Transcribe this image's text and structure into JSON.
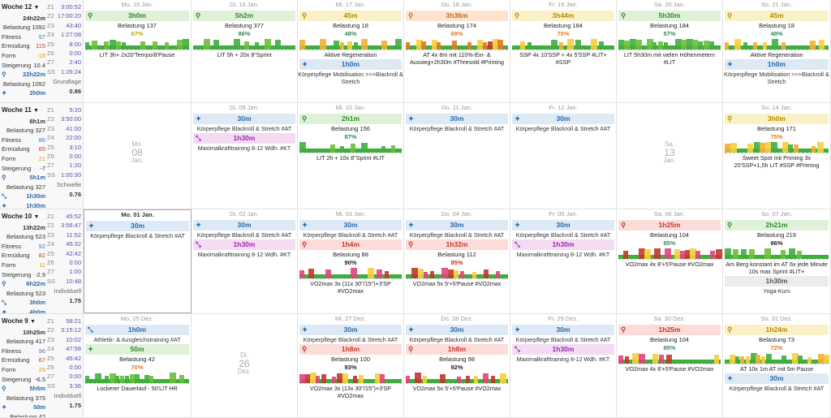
{
  "weeks": [
    {
      "name": "Woche 12",
      "time": "24h22m",
      "load": "Belastung 1092",
      "fitness": "97",
      "fatigue": "115",
      "form": "-18",
      "increase": "10.4",
      "bike_time": "22h22m",
      "bike_load": "Belastung 1092",
      "walk_time": "2h0m",
      "zones": [
        [
          "Z1",
          "3:00:52"
        ],
        [
          "Z2",
          "17:00:20"
        ],
        [
          "Z3",
          "43:40"
        ],
        [
          "Z4",
          "1:27:08"
        ],
        [
          "Z5",
          "8:00"
        ],
        [
          "Z6",
          "0:00"
        ],
        [
          "Z7",
          "2:40"
        ],
        [
          "SS",
          "1:26:24"
        ]
      ],
      "plan_label": "Grundlage",
      "plan_value": "0.86",
      "days": [
        {
          "date": "Mo. 15 Jan.",
          "events": [
            {
              "color": "green",
              "icon": "bike-icon",
              "dur": "3h0m",
              "load": "Belastung 137",
              "pct": "67%",
              "pctc": "y",
              "desc": "LIT 3h+ 2x20'Tempo/8'Pause"
            }
          ]
        },
        {
          "date": "Di. 16 Jan.",
          "events": [
            {
              "color": "green",
              "icon": "bike-icon",
              "dur": "5h2m",
              "load": "Belastung 377",
              "pct": "86%",
              "pctc": "g",
              "desc": "LIT 5h + 20x 8\"Sprint"
            }
          ]
        },
        {
          "date": "Mi. 17 Jan.",
          "events": [
            {
              "color": "yel",
              "icon": "bike-icon",
              "dur": "45m",
              "load": "Belastung 18",
              "pct": "48%",
              "pctc": "g",
              "desc": "Aktive Regeneration"
            },
            {
              "color": "blue",
              "icon": "walk-icon",
              "dur": "1h0m",
              "sub": "Körperpflege Mobilisation >>>Blackroll & Stretch"
            }
          ]
        },
        {
          "date": "Do. 18 Jan.",
          "events": [
            {
              "color": "ora",
              "icon": "bike-icon",
              "dur": "3h36m",
              "load": "Belastung 174",
              "pct": "69%",
              "pctc": "o",
              "desc": "AT 4x 8m mit 110%-Ein- & Aussieg+2h30m #Thresold #Priming"
            }
          ]
        },
        {
          "date": "Fr. 19 Jan.",
          "events": [
            {
              "color": "yel",
              "icon": "bike-icon",
              "dur": "3h44m",
              "load": "Belastung 184",
              "pct": "70%",
              "pctc": "o",
              "desc": "SSP 4x 10'SSP + 4x 5'SSP #LIT+ #SSP"
            }
          ]
        },
        {
          "date": "Sa. 20 Jan.",
          "events": [
            {
              "color": "green",
              "icon": "bike-icon",
              "dur": "5h30m",
              "load": "Belastung 184",
              "pct": "57%",
              "pctc": "g",
              "desc": "LIT 5h30m mit vielen Höhenmetern #LIT"
            }
          ]
        },
        {
          "date": "So. 21 Jan.",
          "events": [
            {
              "color": "yel",
              "icon": "bike-icon",
              "dur": "45m",
              "load": "Belastung 18",
              "pct": "48%",
              "pctc": "g",
              "desc": "Aktive Regeneration"
            },
            {
              "color": "blue",
              "icon": "walk-icon",
              "dur": "1h0m",
              "sub": "Körperpflege Mobilisation >>>Blackroll & Stretch"
            }
          ]
        }
      ]
    },
    {
      "name": "Woche 11",
      "time": "8h1m",
      "load": "Belastung 327",
      "fitness": "86",
      "fatigue": "65",
      "form": "21",
      "increase": "-7",
      "bike_time": "5h1m",
      "bike_load": "Belastung 327",
      "strength_time": "1h30m",
      "walk_time": "1h30m",
      "zones": [
        [
          "Z1",
          "5:20"
        ],
        [
          "Z2",
          "3:50:00"
        ],
        [
          "Z3",
          "41:00"
        ],
        [
          "Z4",
          "22:00"
        ],
        [
          "Z5",
          "3:10"
        ],
        [
          "Z6",
          "0:00"
        ],
        [
          "Z7",
          "1:20"
        ],
        [
          "SS",
          "1:00:30"
        ]
      ],
      "plan_label": "Schwelle",
      "plan_value": "0.76",
      "days": [
        {
          "date": "Mo.",
          "empty_num": "08",
          "empty_mon": "Jan.",
          "events": []
        },
        {
          "date": "Di. 09 Jan.",
          "events": [
            {
              "color": "blue",
              "icon": "walk-icon",
              "dur": "30m",
              "sub": "Körperpflege Blackroll & Stretch #AT"
            },
            {
              "color": "pink",
              "icon": "strength-icon",
              "dur": "1h30m",
              "sub": "Maximalkrafttraining 8-12 Wdh. #KT"
            }
          ]
        },
        {
          "date": "Mi. 10 Jan.",
          "events": [
            {
              "color": "green",
              "icon": "bike-icon",
              "dur": "2h1m",
              "load": "Belastung 156",
              "pct": "87%",
              "pctc": "g",
              "desc": "LIT 2h + 10x 8\"Sprint #LIT"
            }
          ]
        },
        {
          "date": "Do. 11 Jan.",
          "events": [
            {
              "color": "blue",
              "icon": "walk-icon",
              "dur": "30m",
              "sub": "Körperpflege Blackroll & Stretch #AT"
            }
          ]
        },
        {
          "date": "Fr. 12 Jan.",
          "events": [
            {
              "color": "blue",
              "icon": "walk-icon",
              "dur": "30m",
              "sub": "Körperpflege Blackroll & Stretch #AT"
            }
          ]
        },
        {
          "date": "Sa.",
          "empty_num": "13",
          "empty_mon": "Jan.",
          "events": []
        },
        {
          "date": "So. 14 Jan.",
          "events": [
            {
              "color": "yel",
              "icon": "bike-icon",
              "dur": "3h0m",
              "load": "Belastung 171",
              "pct": "75%",
              "pctc": "o",
              "desc": "Sweet Spot mit Priming 3x 20'SSP+1,5h LIT #SSP #Priming"
            }
          ]
        }
      ]
    },
    {
      "name": "Woche 10",
      "time": "13h22m",
      "load": "Belastung 523",
      "fitness": "92",
      "fatigue": "82",
      "form": "11",
      "increase": "-2.9",
      "bike_time": "6h22m",
      "bike_load": "Belastung 523",
      "strength_time": "3h0m",
      "walk_time": "4h0m",
      "zones": [
        [
          "Z1",
          "45:52"
        ],
        [
          "Z2",
          "3:56:47"
        ],
        [
          "Z3",
          "11:52"
        ],
        [
          "Z4",
          "45:32"
        ],
        [
          "Z5",
          "42:42"
        ],
        [
          "Z6",
          "0:00"
        ],
        [
          "Z7",
          "1:00"
        ],
        [
          "SS",
          "10:48"
        ]
      ],
      "plan_label": "Individuell",
      "plan_value": "1.75",
      "days": [
        {
          "date": "Mo. 01 Jan.",
          "current": true,
          "events": [
            {
              "color": "blue",
              "icon": "walk-icon",
              "dur": "30m",
              "sub": "Körperpflege Blackroll & Stretch #AT"
            }
          ]
        },
        {
          "date": "Di. 02 Jan.",
          "events": [
            {
              "color": "blue",
              "icon": "walk-icon",
              "dur": "30m",
              "sub": "Körperpflege Blackroll & Stretch #AT"
            },
            {
              "color": "pink",
              "icon": "strength-icon",
              "dur": "1h30m",
              "sub": "Maximalkrafttraining 8-12 Wdh. #KT"
            }
          ]
        },
        {
          "date": "Mi. 03 Jan.",
          "events": [
            {
              "color": "blue",
              "icon": "walk-icon",
              "dur": "30m",
              "sub": "Körperpflege Blackroll & Stretch #AT"
            },
            {
              "color": "red",
              "icon": "bike-icon",
              "dur": "1h4m",
              "load": "Belastung 88",
              "pct": "90%",
              "pctc": "k",
              "desc": "VO2max 3x (11x 30\"/15\")+3'SP #VO2max"
            }
          ]
        },
        {
          "date": "Do. 04 Jan.",
          "events": [
            {
              "color": "blue",
              "icon": "walk-icon",
              "dur": "30m",
              "sub": "Körperpflege Blackroll & Stretch #AT"
            },
            {
              "color": "red",
              "icon": "bike-icon",
              "dur": "1h32m",
              "load": "Belastung 112",
              "pct": "85%",
              "pctc": "r",
              "desc": "VO2max 5x 5'+5'Pause #VO2max"
            }
          ]
        },
        {
          "date": "Fr. 05 Jan.",
          "events": [
            {
              "color": "blue",
              "icon": "walk-icon",
              "dur": "30m",
              "sub": "Körperpflege Blackroll & Stretch #AT"
            },
            {
              "color": "pink",
              "icon": "strength-icon",
              "dur": "1h30m",
              "sub": "Maximalkrafttraining 8-12 Wdh. #KT"
            }
          ]
        },
        {
          "date": "Sa. 06 Jan.",
          "events": [
            {
              "color": "red",
              "icon": "bike-icon",
              "dur": "1h25m",
              "load": "Belastung 104",
              "pct": "85%",
              "pctc": "g",
              "desc": "VO2max 4x 8'+5'Pause #VO2max"
            }
          ]
        },
        {
          "date": "So. 07 Jan.",
          "events": [
            {
              "color": "green",
              "icon": "bike-icon",
              "dur": "2h21m",
              "load": "Belastung 219",
              "pct": "96%",
              "pctc": "k",
              "desc": "Am Berg konstant im AT 6x jede Minute 10s max Sprint #LIT+"
            },
            {
              "color": "gray",
              "icon": "",
              "dur": "1h30m",
              "sub": "Yoga-Kurs"
            }
          ]
        }
      ]
    },
    {
      "name": "Woche 9",
      "time": "10h25m",
      "load": "Belastung 417",
      "fitness": "96",
      "fatigue": "67",
      "form": "29",
      "increase": "-6.5",
      "bike_time": "5h5m",
      "bike_load": "Belastung 375",
      "walk_time": "50m",
      "walk_load": "Belastung 42",
      "zones": [
        [
          "Z1",
          "58:21"
        ],
        [
          "Z2",
          "3:15:12"
        ],
        [
          "Z3",
          "10:02"
        ],
        [
          "Z4",
          "47:58"
        ],
        [
          "Z5",
          "45:42"
        ],
        [
          "Z6",
          "0:00"
        ],
        [
          "Z7",
          "0:00"
        ],
        [
          "SS",
          "3:36"
        ]
      ],
      "plan_label": "Individuell",
      "plan_value": "1.75",
      "days": [
        {
          "date": "Mo. 25 Dez.",
          "events": [
            {
              "color": "blue",
              "icon": "strength-icon",
              "dur": "1h0m",
              "sub": "Athletik- & Ausgleichstraining #AT"
            },
            {
              "color": "green",
              "icon": "walk-icon",
              "dur": "50m",
              "load": "Belastung 42",
              "pct": "70%",
              "pctc": "o",
              "desc": "Lockerer Dauerlauf - 50'LIT HR"
            }
          ]
        },
        {
          "date": "Di.",
          "empty_num": "26",
          "empty_mon": "Dez.",
          "events": []
        },
        {
          "date": "Mi. 27 Dez.",
          "events": [
            {
              "color": "blue",
              "icon": "walk-icon",
              "dur": "30m",
              "sub": "Körperpflege Blackroll & Stretch #AT"
            },
            {
              "color": "red",
              "icon": "bike-icon",
              "dur": "1h8m",
              "load": "Belastung 100",
              "pct": "93%",
              "pctc": "k",
              "desc": "VO2max 3x (13x 30\"/15\")+3'SP #VO2max"
            }
          ]
        },
        {
          "date": "Do. 28 Dez.",
          "events": [
            {
              "color": "blue",
              "icon": "walk-icon",
              "dur": "30m",
              "sub": "Körperpflege Blackroll & Stretch #AT"
            },
            {
              "color": "red",
              "icon": "bike-icon",
              "dur": "1h8m",
              "load": "Belastung 98",
              "pct": "92%",
              "pctc": "k",
              "desc": "VO2max 5x 5'+5'Pause #VO2max"
            }
          ]
        },
        {
          "date": "Fr. 29 Dez.",
          "events": [
            {
              "color": "blue",
              "icon": "walk-icon",
              "dur": "30m",
              "sub": "Körperpflege Blackroll & Stretch #AT"
            },
            {
              "color": "pink",
              "icon": "strength-icon",
              "dur": "1h30m",
              "sub": "Maximalkrafttraining 8-12 Wdh. #KT"
            }
          ]
        },
        {
          "date": "Sa. 30 Dez.",
          "events": [
            {
              "color": "red",
              "icon": "bike-icon",
              "dur": "1h25m",
              "load": "Belastung 104",
              "pct": "85%",
              "pctc": "g",
              "desc": "VO2max 4x 8'+5'Pause #VO2max"
            }
          ]
        },
        {
          "date": "So. 31 Dez.",
          "events": [
            {
              "color": "yel",
              "icon": "bike-icon",
              "dur": "1h24m",
              "load": "Belastung 73",
              "pct": "72%",
              "pctc": "o",
              "desc": "AT 10x 1m AT mit 5m Pause"
            },
            {
              "color": "blue",
              "icon": "walk-icon",
              "dur": "30m",
              "sub": "Körperpflege Blackroll & Stretch #AT"
            }
          ]
        }
      ]
    }
  ],
  "labels": {
    "fitness": "Fitness",
    "fatigue": "Ermüdung",
    "form": "Form",
    "increase": "Steigerung"
  },
  "colors": {
    "fitness": "#3a7bd5",
    "fatigue": "#c0392b",
    "form": "#e0a000",
    "zone_value": "#5b4fb0"
  }
}
